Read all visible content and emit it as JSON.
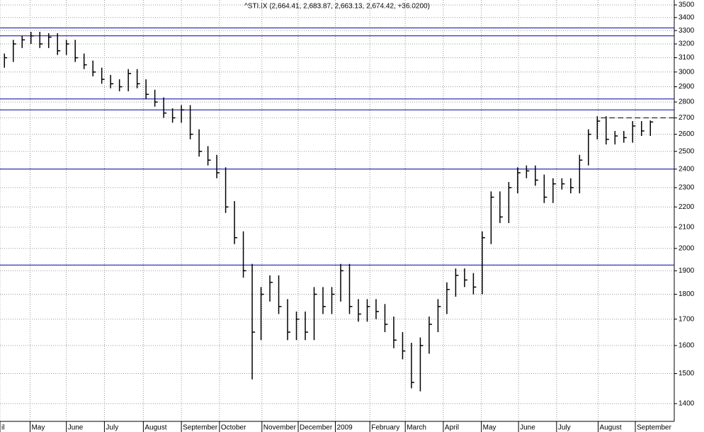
{
  "chart_data": {
    "type": "hlc",
    "title": "^STI.IX (2,664.41, 2,683.87, 2,663.13, 2,674.42, +36.0200)",
    "log_scale": true,
    "grid": true,
    "xlim": [
      0,
      76.2
    ],
    "xticks": [
      {
        "value": 0,
        "label": "il"
      },
      {
        "value": 3.4,
        "label": "May"
      },
      {
        "value": 7.5,
        "label": "June"
      },
      {
        "value": 11.8,
        "label": "July"
      },
      {
        "value": 16.2,
        "label": "August"
      },
      {
        "value": 20.5,
        "label": "September"
      },
      {
        "value": 24.8,
        "label": "October"
      },
      {
        "value": 29.6,
        "label": "November"
      },
      {
        "value": 33.7,
        "label": "December"
      },
      {
        "value": 37.9,
        "label": "2009"
      },
      {
        "value": 41.8,
        "label": "February"
      },
      {
        "value": 45.8,
        "label": "March"
      },
      {
        "value": 50.1,
        "label": "April"
      },
      {
        "value": 54.4,
        "label": "May"
      },
      {
        "value": 58.6,
        "label": "June"
      },
      {
        "value": 62.9,
        "label": "July"
      },
      {
        "value": 67.6,
        "label": "August"
      },
      {
        "value": 71.8,
        "label": "September"
      }
    ],
    "ylim": [
      1344,
      3540
    ],
    "yticks": [
      1400,
      1500,
      1600,
      1700,
      1800,
      1900,
      2000,
      2100,
      2200,
      2300,
      2400,
      2500,
      2600,
      2700,
      2800,
      2900,
      3000,
      3100,
      3200,
      3300,
      3400,
      3500
    ],
    "x": [
      0.5,
      1.5,
      2.5,
      3.5,
      4.5,
      5.5,
      6.5,
      7.5,
      8.5,
      9.5,
      10.5,
      11.5,
      12.5,
      13.5,
      14.5,
      15.5,
      16.5,
      17.5,
      18.5,
      19.5,
      20.5,
      21.5,
      22.5,
      23.5,
      24.5,
      25.5,
      26.5,
      27.5,
      28.5,
      29.5,
      30.5,
      31.5,
      32.5,
      33.5,
      34.5,
      35.5,
      36.5,
      37.5,
      38.5,
      39.5,
      40.5,
      41.5,
      42.5,
      43.5,
      44.5,
      45.5,
      46.5,
      47.5,
      48.5,
      49.5,
      50.5,
      51.5,
      52.5,
      53.5,
      54.5,
      55.5,
      56.5,
      57.5,
      58.5,
      59.5,
      60.5,
      61.5,
      62.5,
      63.5,
      64.5,
      65.5,
      66.5,
      67.5,
      68.5,
      69.5,
      70.5,
      71.5,
      72.5,
      73.5
    ],
    "series": [
      {
        "color": "#000000",
        "high": [
          3130,
          3230,
          3260,
          3290,
          3290,
          3280,
          3280,
          3230,
          3230,
          3130,
          3080,
          3030,
          2980,
          2950,
          3020,
          3020,
          2950,
          2880,
          2830,
          2760,
          2780,
          2780,
          2630,
          2530,
          2480,
          2410,
          2230,
          2080,
          1930,
          1830,
          1880,
          1880,
          1780,
          1730,
          1730,
          1830,
          1830,
          1830,
          1930,
          1930,
          1780,
          1780,
          1780,
          1760,
          1710,
          1650,
          1610,
          1630,
          1710,
          1780,
          1850,
          1910,
          1910,
          1890,
          2080,
          2280,
          2280,
          2330,
          2410,
          2420,
          2420,
          2370,
          2350,
          2350,
          2350,
          2480,
          2630,
          2710,
          2710,
          2620,
          2620,
          2680,
          2680,
          2683.87
        ],
        "low": [
          3030,
          3070,
          3170,
          3200,
          3170,
          3170,
          3120,
          3120,
          3070,
          3020,
          2970,
          2920,
          2890,
          2870,
          2870,
          2890,
          2820,
          2770,
          2700,
          2670,
          2670,
          2570,
          2470,
          2420,
          2350,
          2170,
          2020,
          1870,
          1480,
          1620,
          1770,
          1720,
          1620,
          1620,
          1620,
          1620,
          1720,
          1720,
          1770,
          1720,
          1690,
          1690,
          1700,
          1650,
          1590,
          1550,
          1450,
          1440,
          1570,
          1650,
          1720,
          1790,
          1830,
          1800,
          1800,
          2020,
          2120,
          2120,
          2270,
          2350,
          2310,
          2220,
          2220,
          2290,
          2270,
          2270,
          2420,
          2570,
          2540,
          2540,
          2550,
          2550,
          2590,
          2590
        ],
        "close": [
          3100,
          3200,
          3230,
          3260,
          3200,
          3250,
          3150,
          3200,
          3100,
          3050,
          3000,
          2950,
          2920,
          2900,
          2990,
          2920,
          2850,
          2800,
          2730,
          2700,
          2750,
          2600,
          2500,
          2450,
          2380,
          2200,
          2050,
          1900,
          1650,
          1800,
          1850,
          1750,
          1650,
          1700,
          1650,
          1800,
          1750,
          1800,
          1900,
          1750,
          1720,
          1750,
          1730,
          1680,
          1620,
          1580,
          1470,
          1600,
          1680,
          1750,
          1820,
          1880,
          1860,
          1830,
          2050,
          2250,
          2150,
          2300,
          2380,
          2390,
          2340,
          2250,
          2320,
          2320,
          2300,
          2450,
          2600,
          2680,
          2570,
          2590,
          2580,
          2650,
          2620,
          2674.42
        ]
      }
    ],
    "hlines": {
      "color": "#0000aa",
      "values": [
        3320,
        3260,
        2820,
        2750,
        2400,
        1925
      ]
    },
    "dashed_line": {
      "value": 2700,
      "from": 67.9,
      "to": 76.2,
      "color": "#000000"
    }
  }
}
